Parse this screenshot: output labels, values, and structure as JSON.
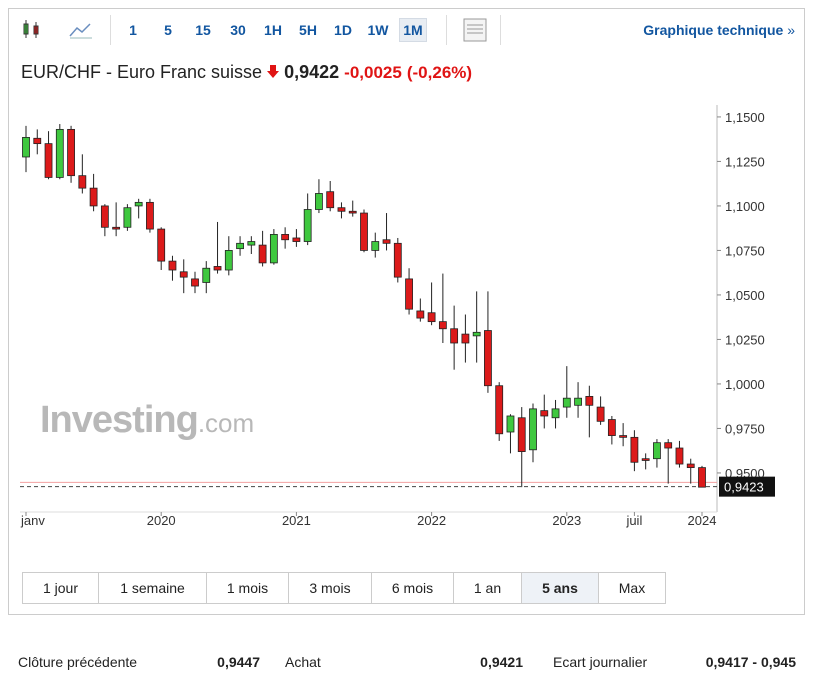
{
  "toolbar": {
    "intervals": [
      "1",
      "5",
      "15",
      "30",
      "1H",
      "5H",
      "1D",
      "1W",
      "1M"
    ],
    "active": "1M",
    "link": "Graphique technique",
    "link_arrow": "»"
  },
  "header": {
    "title": "EUR/CHF - Euro Franc suisse",
    "price": "0,9422",
    "change": "-0,0025",
    "change_pct": "(-0,26%)"
  },
  "chart_data": {
    "type": "candlestick",
    "watermark": {
      "name": "Investing",
      "suffix": ".com"
    },
    "categories": [
      "janv",
      null,
      null,
      null,
      null,
      null,
      null,
      null,
      null,
      null,
      null,
      null,
      "2020",
      null,
      null,
      null,
      null,
      null,
      null,
      null,
      null,
      null,
      null,
      null,
      "2021",
      null,
      null,
      null,
      null,
      null,
      null,
      null,
      null,
      null,
      null,
      null,
      "2022",
      null,
      null,
      null,
      null,
      null,
      null,
      null,
      null,
      null,
      null,
      null,
      "2023",
      null,
      null,
      null,
      null,
      null,
      "juil",
      null,
      null,
      null,
      null,
      null,
      "2024"
    ],
    "open": [
      1.1275,
      1.138,
      1.135,
      1.116,
      1.143,
      1.117,
      1.11,
      1.1,
      1.088,
      1.088,
      1.1,
      1.102,
      1.087,
      1.069,
      1.063,
      1.059,
      1.057,
      1.066,
      1.064,
      1.076,
      1.078,
      1.078,
      1.068,
      1.084,
      1.082,
      1.08,
      1.098,
      1.108,
      1.099,
      1.097,
      1.096,
      1.075,
      1.081,
      1.079,
      1.059,
      1.041,
      1.04,
      1.035,
      1.031,
      1.028,
      1.027,
      1.03,
      0.999,
      0.973,
      0.981,
      0.963,
      0.985,
      0.981,
      0.987,
      0.988,
      0.993,
      0.987,
      0.98,
      0.971,
      0.97,
      0.958,
      0.958,
      0.967,
      0.964,
      0.955,
      0.953
    ],
    "high": [
      1.145,
      1.143,
      1.142,
      1.146,
      1.145,
      1.129,
      1.118,
      1.101,
      1.102,
      1.101,
      1.104,
      1.104,
      1.088,
      1.072,
      1.07,
      1.063,
      1.069,
      1.091,
      1.083,
      1.083,
      1.083,
      1.086,
      1.087,
      1.088,
      1.087,
      1.107,
      1.115,
      1.114,
      1.102,
      1.103,
      1.098,
      1.085,
      1.096,
      1.082,
      1.065,
      1.048,
      1.057,
      1.062,
      1.044,
      1.039,
      1.052,
      1.052,
      1.001,
      0.983,
      0.987,
      0.989,
      0.994,
      0.991,
      1.01,
      1.001,
      0.999,
      0.993,
      0.982,
      0.978,
      0.974,
      0.961,
      0.969,
      0.969,
      0.968,
      0.958,
      0.954
    ],
    "low": [
      1.119,
      1.129,
      1.115,
      1.115,
      1.113,
      1.107,
      1.097,
      1.083,
      1.083,
      1.086,
      1.093,
      1.085,
      1.064,
      1.058,
      1.051,
      1.051,
      1.051,
      1.062,
      1.061,
      1.072,
      1.073,
      1.066,
      1.067,
      1.076,
      1.077,
      1.078,
      1.096,
      1.097,
      1.093,
      1.094,
      1.074,
      1.071,
      1.075,
      1.057,
      1.039,
      1.035,
      1.033,
      1.023,
      1.008,
      1.012,
      1.012,
      0.995,
      0.968,
      0.961,
      0.942,
      0.956,
      0.975,
      0.975,
      0.981,
      0.981,
      0.97,
      0.977,
      0.966,
      0.965,
      0.951,
      0.952,
      0.953,
      0.944,
      0.953,
      0.944,
      0.942
    ],
    "close": [
      1.1385,
      1.135,
      1.116,
      1.143,
      1.117,
      1.11,
      1.1,
      1.088,
      1.087,
      1.099,
      1.102,
      1.087,
      1.069,
      1.064,
      1.06,
      1.055,
      1.065,
      1.064,
      1.075,
      1.079,
      1.08,
      1.068,
      1.084,
      1.081,
      1.08,
      1.098,
      1.107,
      1.099,
      1.097,
      1.096,
      1.075,
      1.08,
      1.079,
      1.06,
      1.042,
      1.037,
      1.035,
      1.031,
      1.023,
      1.023,
      1.029,
      0.999,
      0.972,
      0.982,
      0.962,
      0.986,
      0.982,
      0.986,
      0.992,
      0.992,
      0.988,
      0.979,
      0.971,
      0.97,
      0.956,
      0.957,
      0.967,
      0.964,
      0.955,
      0.953,
      0.942
    ],
    "up_color": "#3fc83f",
    "down_color": "#dc1a1a",
    "ylim": [
      0.9348,
      1.1567
    ],
    "yticks": [
      {
        "value": 1.15,
        "label": "1,1500"
      },
      {
        "value": 1.125,
        "label": "1,1250"
      },
      {
        "value": 1.1,
        "label": "1,1000"
      },
      {
        "value": 1.075,
        "label": "1,0750"
      },
      {
        "value": 1.05,
        "label": "1,0500"
      },
      {
        "value": 1.025,
        "label": "1,0250"
      },
      {
        "value": 1.0,
        "label": "1,0000"
      },
      {
        "value": 0.975,
        "label": "0,9750"
      },
      {
        "value": 0.95,
        "label": "0,9500"
      }
    ],
    "reference_line": 0.9447,
    "last_price": {
      "value": 0.9423,
      "label": "0,9423"
    }
  },
  "ranges": {
    "items": [
      "1 jour",
      "1 semaine",
      "1 mois",
      "3 mois",
      "6 mois",
      "1 an",
      "5 ans",
      "Max"
    ],
    "active": "5 ans"
  },
  "stats": [
    {
      "label": "Clôture précédente",
      "value": "0,9447"
    },
    {
      "label": "Achat",
      "value": "0,9421"
    },
    {
      "label": "Ecart journalier",
      "value": "0,9417 - 0,945"
    }
  ]
}
